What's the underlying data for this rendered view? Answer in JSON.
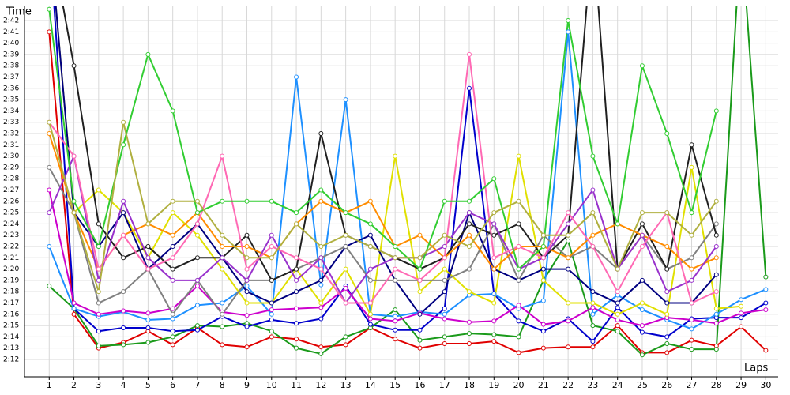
{
  "chart_data": {
    "type": "line",
    "x_label": "Laps",
    "y_label": "Time",
    "x": [
      1,
      2,
      3,
      4,
      5,
      6,
      7,
      8,
      9,
      10,
      11,
      12,
      13,
      14,
      15,
      16,
      17,
      18,
      19,
      20,
      21,
      22,
      23,
      24,
      25,
      26,
      27,
      28,
      29,
      30
    ],
    "xlim": [
      0,
      30.5
    ],
    "xticks": [
      1,
      2,
      3,
      4,
      5,
      6,
      7,
      8,
      9,
      10,
      11,
      12,
      13,
      14,
      15,
      16,
      17,
      18,
      19,
      20,
      21,
      22,
      23,
      24,
      25,
      26,
      27,
      28,
      29,
      30
    ],
    "ylim": [
      130.46,
      163.26
    ],
    "yticks": [
      {
        "value": 132,
        "label": "2:12"
      },
      {
        "value": 133,
        "label": "2:13"
      },
      {
        "value": 134,
        "label": "2:14"
      },
      {
        "value": 135,
        "label": "2:15"
      },
      {
        "value": 136,
        "label": "2:16"
      },
      {
        "value": 137,
        "label": "2:17"
      },
      {
        "value": 138,
        "label": "2:18"
      },
      {
        "value": 139,
        "label": "2:19"
      },
      {
        "value": 140,
        "label": "2:20"
      },
      {
        "value": 141,
        "label": "2:21"
      },
      {
        "value": 142,
        "label": "2:22"
      },
      {
        "value": 143,
        "label": "2:23"
      },
      {
        "value": 144,
        "label": "2:24"
      },
      {
        "value": 145,
        "label": "2:25"
      },
      {
        "value": 146,
        "label": "2:26"
      },
      {
        "value": 147,
        "label": "2:27"
      },
      {
        "value": 148,
        "label": "2:28"
      },
      {
        "value": 149,
        "label": "2:29"
      },
      {
        "value": 150,
        "label": "2:30"
      },
      {
        "value": 151,
        "label": "2:31"
      },
      {
        "value": 152,
        "label": "2:32"
      },
      {
        "value": 153,
        "label": "2:33"
      },
      {
        "value": 154,
        "label": "2:34"
      },
      {
        "value": 155,
        "label": "2:35"
      },
      {
        "value": 156,
        "label": "2:36"
      },
      {
        "value": 157,
        "label": "2:37"
      },
      {
        "value": 158,
        "label": "2:38"
      },
      {
        "value": 159,
        "label": "2:39"
      },
      {
        "value": 160,
        "label": "2:40"
      },
      {
        "value": 161,
        "label": "2:41"
      },
      {
        "value": 162,
        "label": "2:42"
      }
    ],
    "grid": true,
    "series": [
      {
        "color": "#e00000",
        "values": [
          161,
          136,
          133,
          133.5,
          134.5,
          133.3,
          134.8,
          133.3,
          133.1,
          134,
          133.8,
          133.1,
          133.3,
          134.8,
          133.8,
          133,
          133.4,
          133.4,
          133.6,
          132.6,
          133,
          133.1,
          133.1,
          135,
          132.6,
          132.6,
          133.7,
          133.2,
          134.9,
          132.8
        ]
      },
      {
        "color": "#1a9a1a",
        "values": [
          138.5,
          136.5,
          133.2,
          133.3,
          133.5,
          134,
          135,
          134.9,
          135.2,
          134.5,
          133,
          132.5,
          134,
          134.8,
          136.4,
          133.7,
          134,
          134.3,
          134.2,
          134,
          139,
          142.5,
          135,
          134.5,
          132.4,
          133.4,
          132.9,
          132.9,
          170,
          139.3
        ]
      },
      {
        "color": "#0000cc",
        "values": [
          170,
          136.5,
          134.5,
          134.8,
          134.8,
          134.5,
          134.6,
          135.8,
          134.9,
          135.5,
          135.2,
          135.6,
          138.5,
          135.1,
          134.6,
          134.6,
          136.5,
          156,
          137.8,
          135.4,
          134.5,
          135.6,
          133.6,
          136.6,
          134.4,
          134,
          135.6,
          135.7,
          135.7,
          137
        ]
      },
      {
        "color": "#1e90ff",
        "values": [
          142,
          136.5,
          135.8,
          136.2,
          135.5,
          135.6,
          136.8,
          137,
          138.5,
          136,
          157,
          138.6,
          155,
          136,
          135.8,
          136.2,
          136,
          137.7,
          137.8,
          136.5,
          137.2,
          161,
          136,
          137.7,
          136.4,
          135.5,
          134.7,
          136,
          137.3,
          138.2
        ]
      },
      {
        "color": "#cc00cc",
        "values": [
          147,
          137,
          136,
          136.3,
          136.1,
          136.5,
          138.5,
          136.2,
          135.9,
          136.4,
          136.5,
          136.6,
          138.3,
          135.6,
          135.4,
          136.1,
          135.6,
          135.3,
          135.4,
          136.8,
          135.1,
          135.4,
          136.6,
          135.5,
          135,
          135.7,
          135.5,
          135.2,
          136.1,
          136.4
        ]
      },
      {
        "color": "#e0e000",
        "values": [
          170,
          145,
          147,
          145,
          141,
          145,
          143,
          140,
          137,
          137,
          140,
          137,
          140,
          136,
          150,
          138,
          140,
          138,
          137,
          150,
          139,
          137,
          137,
          136,
          137,
          136,
          149,
          136.5,
          136.7,
          null
        ]
      },
      {
        "color": "#000080",
        "values": [
          170,
          145,
          142,
          145,
          140,
          142,
          144,
          141,
          138,
          137,
          138,
          139,
          142,
          143,
          139,
          136,
          138,
          145,
          140,
          139,
          140,
          140,
          138,
          137,
          139,
          137,
          137,
          139.5,
          null,
          null
        ]
      },
      {
        "color": "#808080",
        "values": [
          149,
          145,
          137,
          138,
          140,
          136,
          139,
          136,
          139,
          139,
          140,
          141,
          142,
          139,
          139,
          139,
          139,
          140,
          144,
          139,
          143,
          141,
          142,
          140,
          143,
          140,
          141,
          144,
          null,
          null
        ]
      },
      {
        "color": "#202020",
        "values": [
          170,
          158,
          144,
          141,
          142,
          140,
          141,
          141,
          143,
          139,
          140,
          152,
          143,
          142,
          141,
          140,
          141,
          144,
          143,
          144,
          141,
          143,
          170,
          140,
          144,
          140,
          151,
          143,
          null,
          null
        ]
      },
      {
        "color": "#ff8c00",
        "values": [
          152,
          145,
          140,
          143,
          144,
          143,
          145,
          142,
          142,
          141,
          144,
          146,
          145,
          146,
          142,
          143,
          141,
          143,
          140,
          142,
          142,
          141,
          143,
          144,
          143,
          142,
          140,
          141,
          null,
          null
        ]
      },
      {
        "color": "#9932cc",
        "values": [
          145,
          150,
          139,
          146,
          141,
          139,
          139,
          141,
          139,
          143,
          139,
          141,
          137,
          140,
          141,
          141,
          142,
          145,
          144,
          140,
          141,
          144,
          147,
          140,
          143,
          138,
          139,
          142,
          null,
          null
        ]
      },
      {
        "color": "#ff69b4",
        "values": [
          153,
          150,
          140,
          143,
          140,
          141,
          144,
          150,
          140,
          142,
          141,
          140,
          137,
          137,
          140,
          139,
          141,
          159,
          141,
          142,
          141,
          145,
          142,
          138,
          142,
          145,
          137,
          138,
          null,
          null
        ]
      },
      {
        "color": "#32cd32",
        "values": [
          163,
          146,
          142,
          151,
          159,
          154,
          145,
          146,
          146,
          146,
          145,
          147,
          145,
          144,
          142,
          140,
          146,
          146,
          148,
          140,
          142,
          162,
          150,
          144,
          158,
          152,
          145,
          154,
          null,
          null
        ]
      },
      {
        "color": "#b0b040",
        "values": [
          153,
          145,
          138,
          153,
          144,
          146,
          146,
          143,
          141,
          141,
          144,
          142,
          143,
          142,
          141,
          141,
          143,
          142,
          145,
          146,
          143,
          143,
          145,
          140,
          145,
          145,
          143,
          146,
          null,
          null
        ]
      }
    ]
  }
}
